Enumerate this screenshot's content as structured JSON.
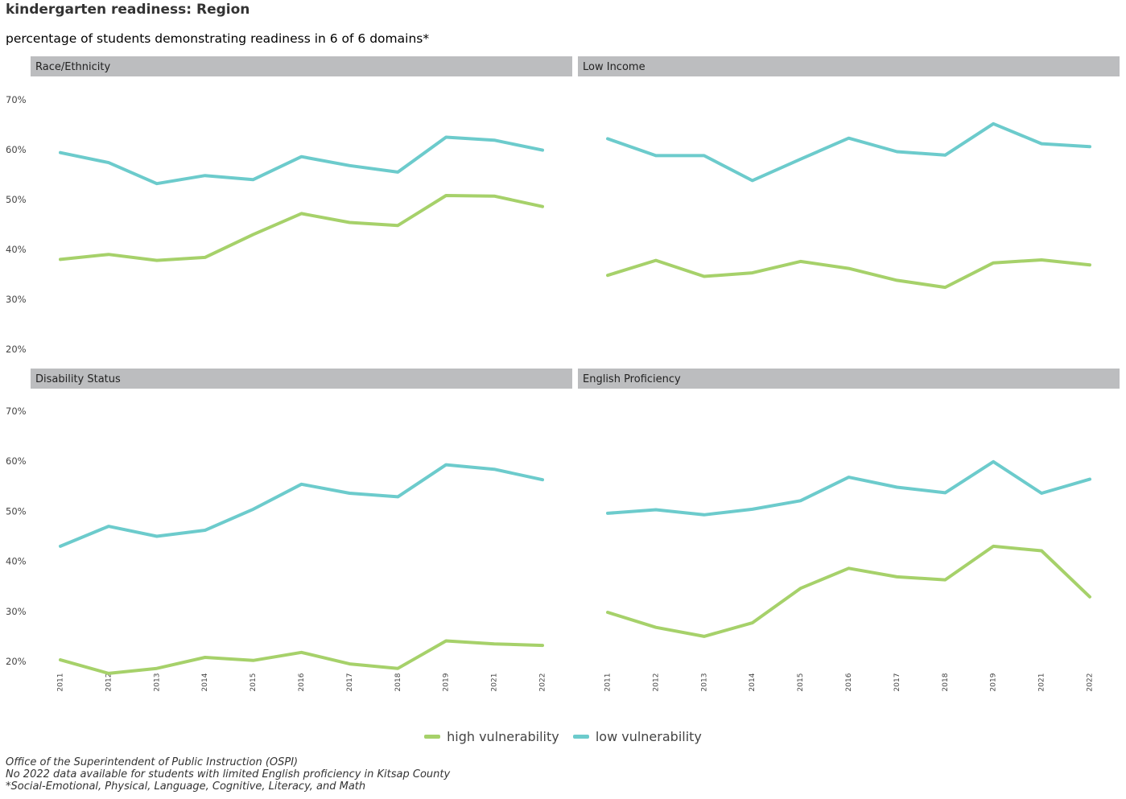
{
  "title": "kindergarten readiness: Region",
  "subtitle": "percentage of students demonstrating readiness in 6 of 6 domains*",
  "captions": [
    "Office of the Superintendent of Public Instruction (OSPI)",
    "No 2022 data available for students with limited English proficiency in Kitsap County",
    "*Social-Emotional, Physical, Language, Cognitive, Literacy, and Math"
  ],
  "colors": {
    "high": "#a6d16a",
    "low": "#6ccbcc",
    "strip": "#bcbdbf"
  },
  "chart_data": {
    "type": "line",
    "x": [
      "2011",
      "2012",
      "2013",
      "2014",
      "2015",
      "2016",
      "2017",
      "2018",
      "2019",
      "2021",
      "2022"
    ],
    "ylim": [
      20,
      70
    ],
    "yticks": [
      20,
      30,
      40,
      50,
      60,
      70
    ],
    "ytick_labels": [
      "20%",
      "30%",
      "40%",
      "50%",
      "60%",
      "70%"
    ],
    "legend": [
      "high vulnerability",
      "low vulnerability"
    ],
    "legend_position": "bottom",
    "grid": false,
    "panels": [
      {
        "label": "Race/Ethnicity",
        "series": [
          {
            "name": "high vulnerability",
            "values": [
              38.0,
              39.0,
              37.8,
              38.4,
              43.0,
              47.2,
              45.4,
              44.8,
              50.8,
              50.7,
              48.6
            ]
          },
          {
            "name": "low vulnerability",
            "values": [
              59.4,
              57.4,
              53.2,
              54.8,
              54.0,
              58.6,
              56.8,
              55.5,
              62.5,
              61.9,
              59.9
            ]
          }
        ]
      },
      {
        "label": "Low Income",
        "series": [
          {
            "name": "high vulnerability",
            "values": [
              34.8,
              37.8,
              34.6,
              35.3,
              37.6,
              36.2,
              33.8,
              32.4,
              37.3,
              37.9,
              36.9
            ]
          },
          {
            "name": "low vulnerability",
            "values": [
              62.2,
              58.8,
              58.8,
              53.8,
              58.1,
              62.3,
              59.6,
              58.9,
              65.2,
              61.2,
              60.6
            ]
          }
        ]
      },
      {
        "label": "Disability Status",
        "series": [
          {
            "name": "high vulnerability",
            "values": [
              20.3,
              17.6,
              18.6,
              20.8,
              20.2,
              21.8,
              19.5,
              18.6,
              24.1,
              23.5,
              23.2
            ]
          },
          {
            "name": "low vulnerability",
            "values": [
              43.0,
              47.0,
              45.0,
              46.2,
              50.4,
              55.4,
              53.6,
              52.9,
              59.3,
              58.4,
              56.3
            ]
          }
        ]
      },
      {
        "label": "English Proficiency",
        "series": [
          {
            "name": "high vulnerability",
            "values": [
              29.8,
              26.8,
              25.0,
              27.7,
              34.6,
              38.6,
              36.9,
              36.3,
              43.0,
              42.1,
              32.9
            ]
          },
          {
            "name": "low vulnerability",
            "values": [
              49.6,
              50.3,
              49.3,
              50.4,
              52.1,
              56.8,
              54.8,
              53.7,
              59.9,
              53.6,
              56.4
            ]
          }
        ]
      }
    ]
  }
}
